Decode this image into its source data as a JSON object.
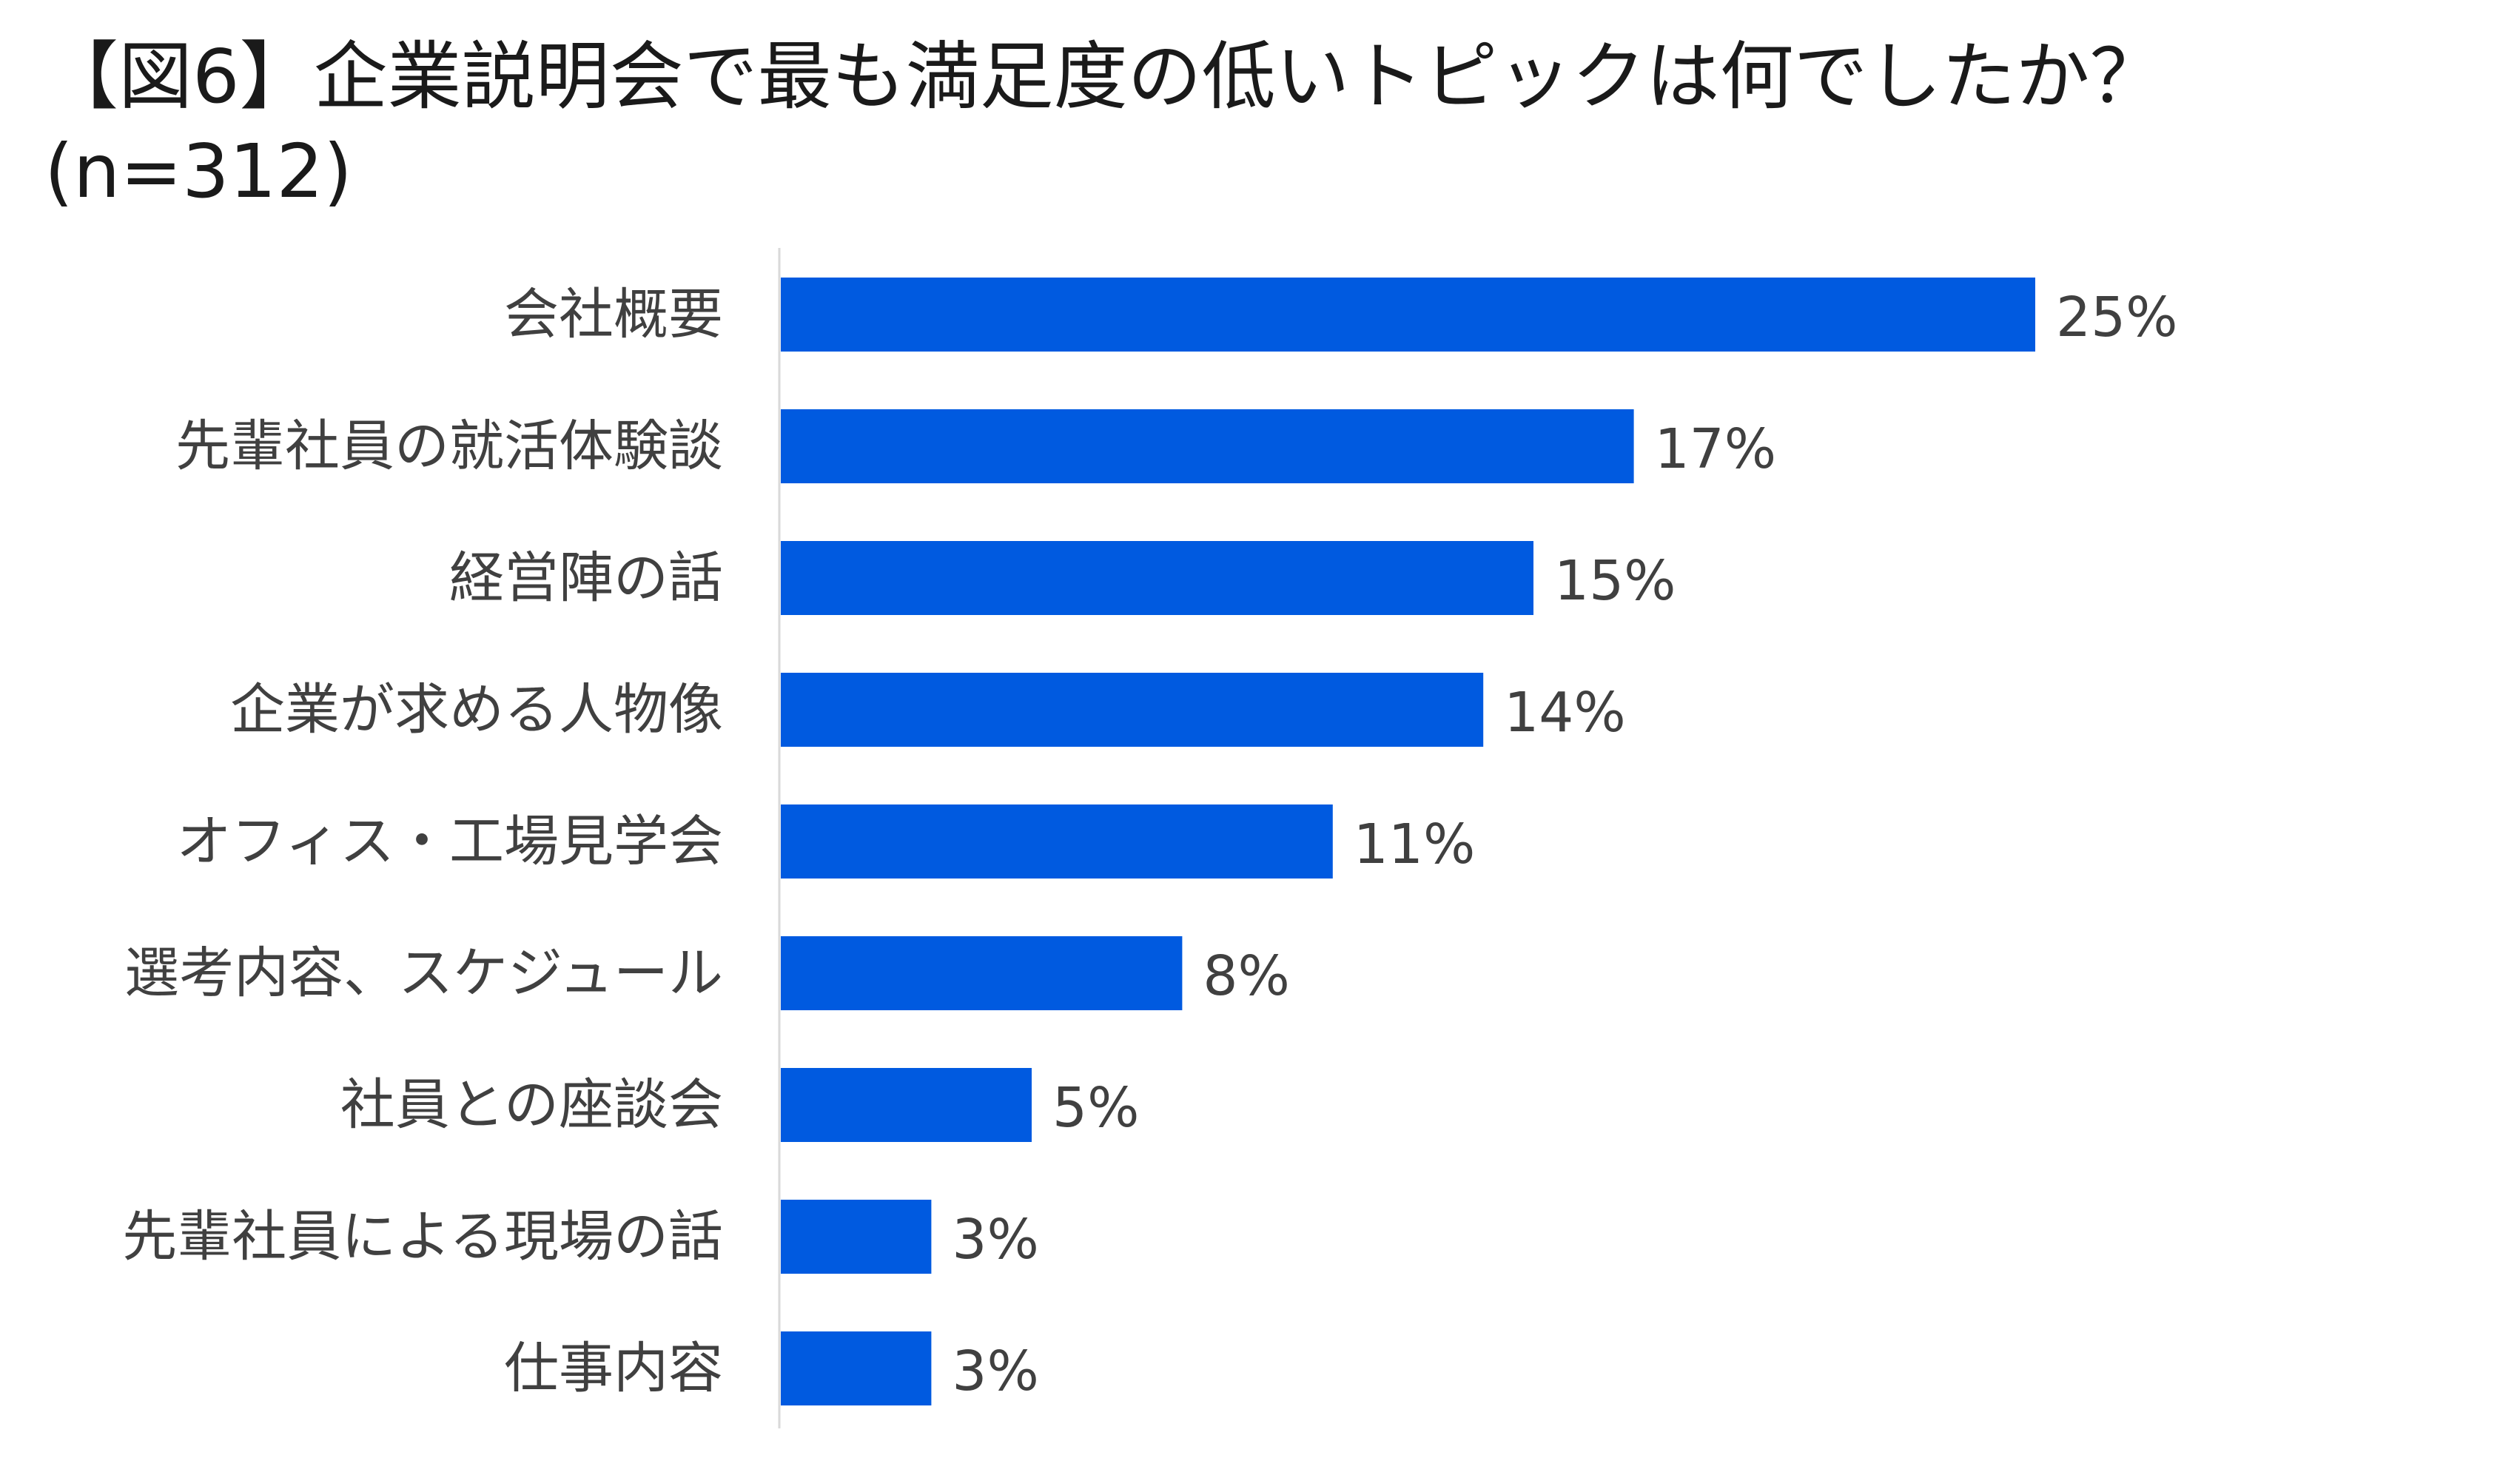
{
  "title": "【図6】企業説明会で最も満足度の低いトピックは何でしたか？",
  "subtitle": "(n=312)",
  "colors": {
    "bar": "#005AE0",
    "axis": "#d9d9d9",
    "text": "#404040"
  },
  "chart_data": {
    "type": "bar",
    "orientation": "horizontal",
    "categories": [
      "会社概要",
      "先輩社員の就活体験談",
      "経営陣の話",
      "企業が求める人物像",
      "オフィス・工場見学会",
      "選考内容、スケジュール",
      "社員との座談会",
      "先輩社員による現場の話",
      "仕事内容"
    ],
    "values": [
      25,
      17,
      15,
      14,
      11,
      8,
      5,
      3,
      3
    ],
    "value_labels": [
      "25%",
      "17%",
      "15%",
      "14%",
      "11%",
      "8%",
      "5%",
      "3%",
      "3%"
    ],
    "unit": "%",
    "xlim": [
      0,
      25
    ],
    "grid": false,
    "legend": "none"
  }
}
